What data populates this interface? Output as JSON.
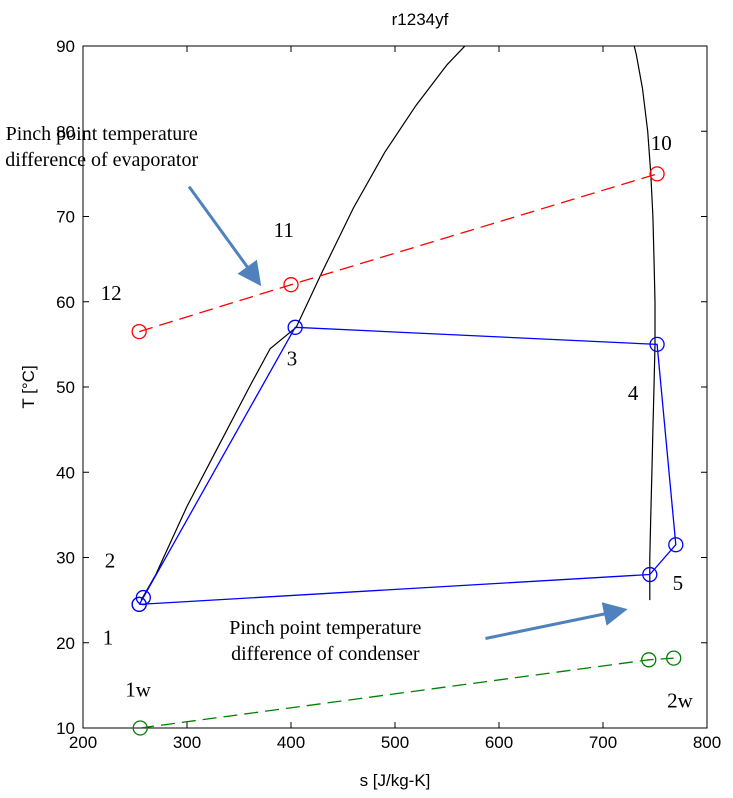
{
  "chart_data": {
    "type": "line",
    "title": "r1234yf",
    "xlabel": "s [J/kg-K]",
    "ylabel": "T [°C]",
    "xlim": [
      200,
      800
    ],
    "ylim": [
      10,
      90
    ],
    "xticks": [
      200,
      300,
      400,
      500,
      600,
      700,
      800
    ],
    "yticks": [
      10,
      20,
      30,
      40,
      50,
      60,
      70,
      80,
      90
    ],
    "grid": false,
    "saturation_dome": {
      "liquid": [
        [
          256,
          25
        ],
        [
          270,
          28
        ],
        [
          300,
          36
        ],
        [
          330,
          43
        ],
        [
          360,
          50
        ],
        [
          380,
          54.5
        ],
        [
          405,
          57
        ],
        [
          430,
          63.5
        ],
        [
          460,
          71
        ],
        [
          490,
          77.5
        ],
        [
          520,
          83
        ],
        [
          550,
          87.8
        ],
        [
          575,
          91
        ]
      ],
      "vapor": [
        [
          745,
          25
        ],
        [
          745,
          30
        ],
        [
          746,
          35
        ],
        [
          747,
          40
        ],
        [
          748,
          45
        ],
        [
          749,
          50
        ],
        [
          750,
          55
        ],
        [
          750,
          60
        ],
        [
          749,
          65
        ],
        [
          748,
          70
        ],
        [
          746,
          75
        ],
        [
          743,
          80
        ],
        [
          738,
          85
        ],
        [
          732,
          89
        ],
        [
          728,
          91
        ]
      ]
    },
    "series": [
      {
        "color": "#0000ff",
        "style": "solid",
        "marker": "circle",
        "x": [
          254,
          258,
          404,
          752,
          770,
          745,
          254
        ],
        "y": [
          24.5,
          25.3,
          57,
          55,
          31.5,
          28,
          24.5
        ]
      },
      {
        "color": "#ff0000",
        "style": "dashed",
        "marker": "circle",
        "x": [
          254,
          400,
          752
        ],
        "y": [
          56.5,
          62,
          75
        ]
      },
      {
        "color": "#008000",
        "style": "dashed",
        "marker": "circle",
        "x": [
          255,
          744,
          768
        ],
        "y": [
          10,
          18,
          18.2
        ]
      }
    ],
    "point_labels": [
      {
        "text": "1",
        "x": 224,
        "y": 19.8
      },
      {
        "text": "2",
        "x": 226,
        "y": 28.8
      },
      {
        "text": "3",
        "x": 401,
        "y": 52.5
      },
      {
        "text": "4",
        "x": 729,
        "y": 48.5
      },
      {
        "text": "5",
        "x": 772,
        "y": 26.2
      },
      {
        "text": "10",
        "x": 756,
        "y": 77.8
      },
      {
        "text": "11",
        "x": 393,
        "y": 67.6
      },
      {
        "text": "12",
        "x": 227,
        "y": 60.2
      },
      {
        "text": "1w",
        "x": 253,
        "y": 13.7
      },
      {
        "text": "2w",
        "x": 774,
        "y": 12.4
      }
    ],
    "annotations": [
      {
        "lines": [
          "Pinch point temperature",
          "difference of evaporator"
        ],
        "x": 218,
        "y": 79
      },
      {
        "lines": [
          "Pinch point temperature",
          "difference of condenser"
        ],
        "x": 433,
        "y": 21
      }
    ],
    "arrows": [
      {
        "from": [
          302,
          73.5
        ],
        "to": [
          368,
          62.4
        ]
      },
      {
        "from": [
          587,
          20.5
        ],
        "to": [
          718,
          23.8
        ]
      }
    ],
    "colors": {
      "dome": "#000000",
      "arrow": "#4f81bd"
    }
  }
}
